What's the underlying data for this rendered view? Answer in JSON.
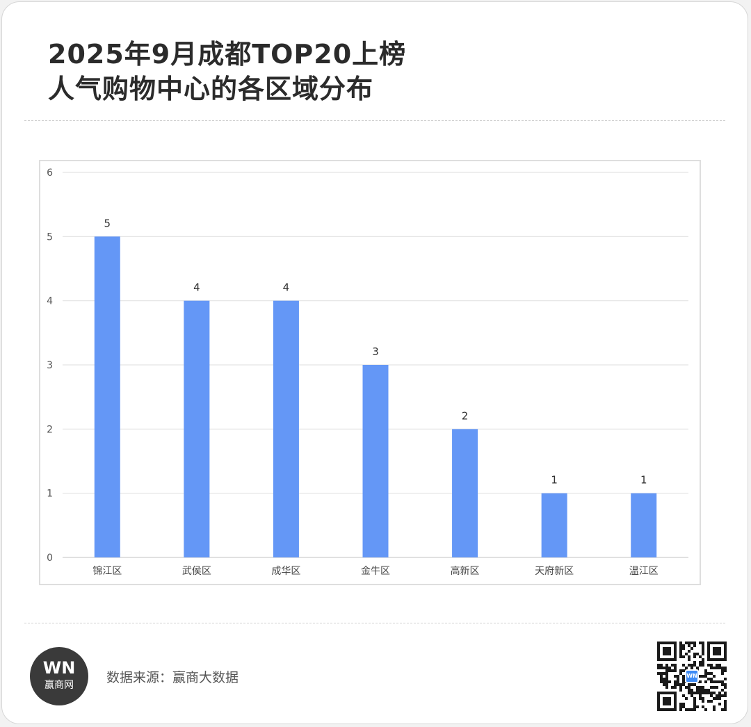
{
  "header": {
    "title_line1": "2025年9月成都TOP20上榜",
    "title_line2": "人气购物中心的各区域分布"
  },
  "chart_data": {
    "type": "bar",
    "title": "2025年9月成都TOP20上榜人气购物中心的各区域分布",
    "xlabel": "",
    "ylabel": "",
    "categories": [
      "锦江区",
      "武侯区",
      "成华区",
      "金牛区",
      "高新区",
      "天府新区",
      "温江区"
    ],
    "values": [
      5,
      4,
      4,
      3,
      2,
      1,
      1
    ],
    "ylim": [
      0,
      6
    ],
    "yticks": [
      0,
      1,
      2,
      3,
      4,
      5,
      6
    ],
    "grid": true,
    "bar_color": "#6497f6",
    "data_labels": true
  },
  "footer": {
    "logo_mark": "WN",
    "logo_text": "赢商网",
    "source": "数据来源：赢商大数据",
    "qr_center_label": "WN"
  },
  "colors": {
    "title": "#2b2b2b",
    "bar": "#6497f6",
    "grid": "#e3e3e3",
    "logo_bg": "#3a3a3a"
  }
}
